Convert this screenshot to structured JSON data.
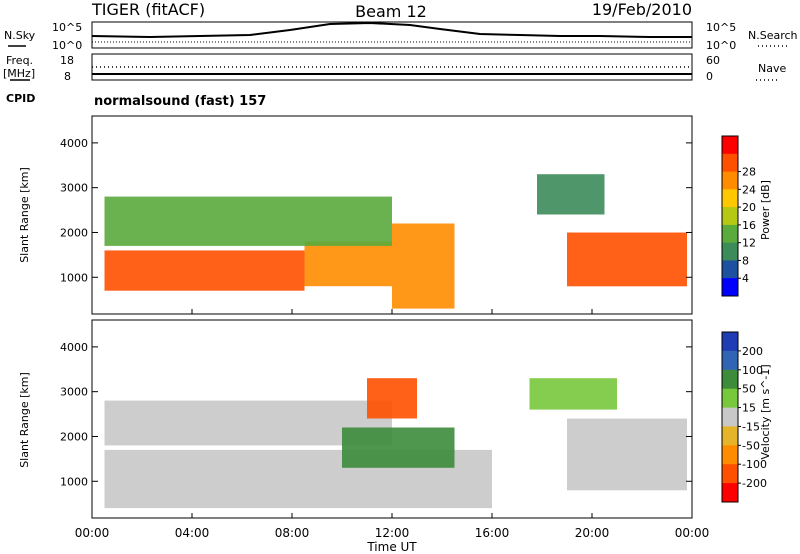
{
  "header": {
    "title": "TIGER (fitACF)",
    "beam": "Beam 12",
    "date": "19/Feb/2010"
  },
  "nsky_panel": {
    "left_label": "N.Sky",
    "right_label": "N.Search",
    "left_ticks": [
      "10^5",
      "10^0"
    ],
    "right_ticks": [
      "10^5",
      "10^0"
    ]
  },
  "freq_panel": {
    "left_label_1": "Freq.",
    "left_label_2": "[MHz]",
    "right_label": "Nave",
    "left_ticks": [
      "18",
      "8"
    ],
    "right_ticks": [
      "60",
      "0"
    ]
  },
  "cpid": {
    "label": "CPID",
    "value": "normalsound (fast) 157"
  },
  "x_axis": {
    "label": "Time UT",
    "ticks": [
      "00:00",
      "04:00",
      "08:00",
      "12:00",
      "16:00",
      "20:00",
      "00:00"
    ]
  },
  "colors": {
    "power_scale": [
      "#0000ff",
      "#1e50a0",
      "#3c8c5a",
      "#5aaa3c",
      "#b4c814",
      "#ffc800",
      "#ff8c00",
      "#ff5000",
      "#ff0000"
    ],
    "velocity_scale": [
      "#1e3cb4",
      "#3264b4",
      "#3c8c3c",
      "#78c83c",
      "#c8c8c8",
      "#e6b428",
      "#ff8c00",
      "#ff5000",
      "#ff0000"
    ],
    "ground_scatter": "#c8c8c8"
  },
  "chart_data": [
    {
      "type": "heatmap",
      "title": "",
      "ylabel": "Slant Range [km]",
      "xlabel": "",
      "y_ticks": [
        "1000",
        "2000",
        "3000",
        "4000"
      ],
      "ylim": [
        180,
        4600
      ],
      "xlim": [
        0,
        24
      ],
      "colorbar": {
        "label": "Power [dB]",
        "ticks": [
          "4",
          "8",
          "12",
          "16",
          "20",
          "24",
          "28"
        ],
        "range": [
          0,
          32
        ]
      },
      "regions": [
        {
          "t_start": 0.5,
          "t_end": 8.5,
          "r_low": 700,
          "r_high": 1600,
          "value": 27
        },
        {
          "t_start": 8.5,
          "t_end": 12.0,
          "r_low": 800,
          "r_high": 1800,
          "value": 24
        },
        {
          "t_start": 0.5,
          "t_end": 12.0,
          "r_low": 1700,
          "r_high": 2800,
          "value": 12
        },
        {
          "t_start": 12.0,
          "t_end": 14.5,
          "r_low": 300,
          "r_high": 2200,
          "value": 22
        },
        {
          "t_start": 17.8,
          "t_end": 20.5,
          "r_low": 2400,
          "r_high": 3300,
          "value": 10
        },
        {
          "t_start": 19.0,
          "t_end": 23.8,
          "r_low": 800,
          "r_high": 2000,
          "value": 25
        }
      ]
    },
    {
      "type": "heatmap",
      "title": "",
      "ylabel": "Slant Range [km]",
      "xlabel": "Time UT",
      "y_ticks": [
        "1000",
        "2000",
        "3000",
        "4000"
      ],
      "ylim": [
        180,
        4600
      ],
      "xlim": [
        0,
        24
      ],
      "colorbar": {
        "label": "Velocity [m s^-1]",
        "ticks": [
          "200",
          "100",
          "50",
          "15",
          "-15",
          "-50",
          "-100",
          "-200"
        ],
        "range": [
          -250,
          250
        ]
      },
      "regions": [
        {
          "t_start": 0.5,
          "t_end": 16.0,
          "r_low": 400,
          "r_high": 1700,
          "value": 0
        },
        {
          "t_start": 0.5,
          "t_end": 12.0,
          "r_low": 1800,
          "r_high": 2800,
          "value": 0
        },
        {
          "t_start": 10.0,
          "t_end": 14.5,
          "r_low": 1300,
          "r_high": 2200,
          "value": 120
        },
        {
          "t_start": 11.0,
          "t_end": 13.0,
          "r_low": 2400,
          "r_high": 3300,
          "value": -180
        },
        {
          "t_start": 17.5,
          "t_end": 21.0,
          "r_low": 2600,
          "r_high": 3300,
          "value": 40
        },
        {
          "t_start": 19.0,
          "t_end": 23.8,
          "r_low": 800,
          "r_high": 2400,
          "value": 0
        }
      ]
    }
  ]
}
